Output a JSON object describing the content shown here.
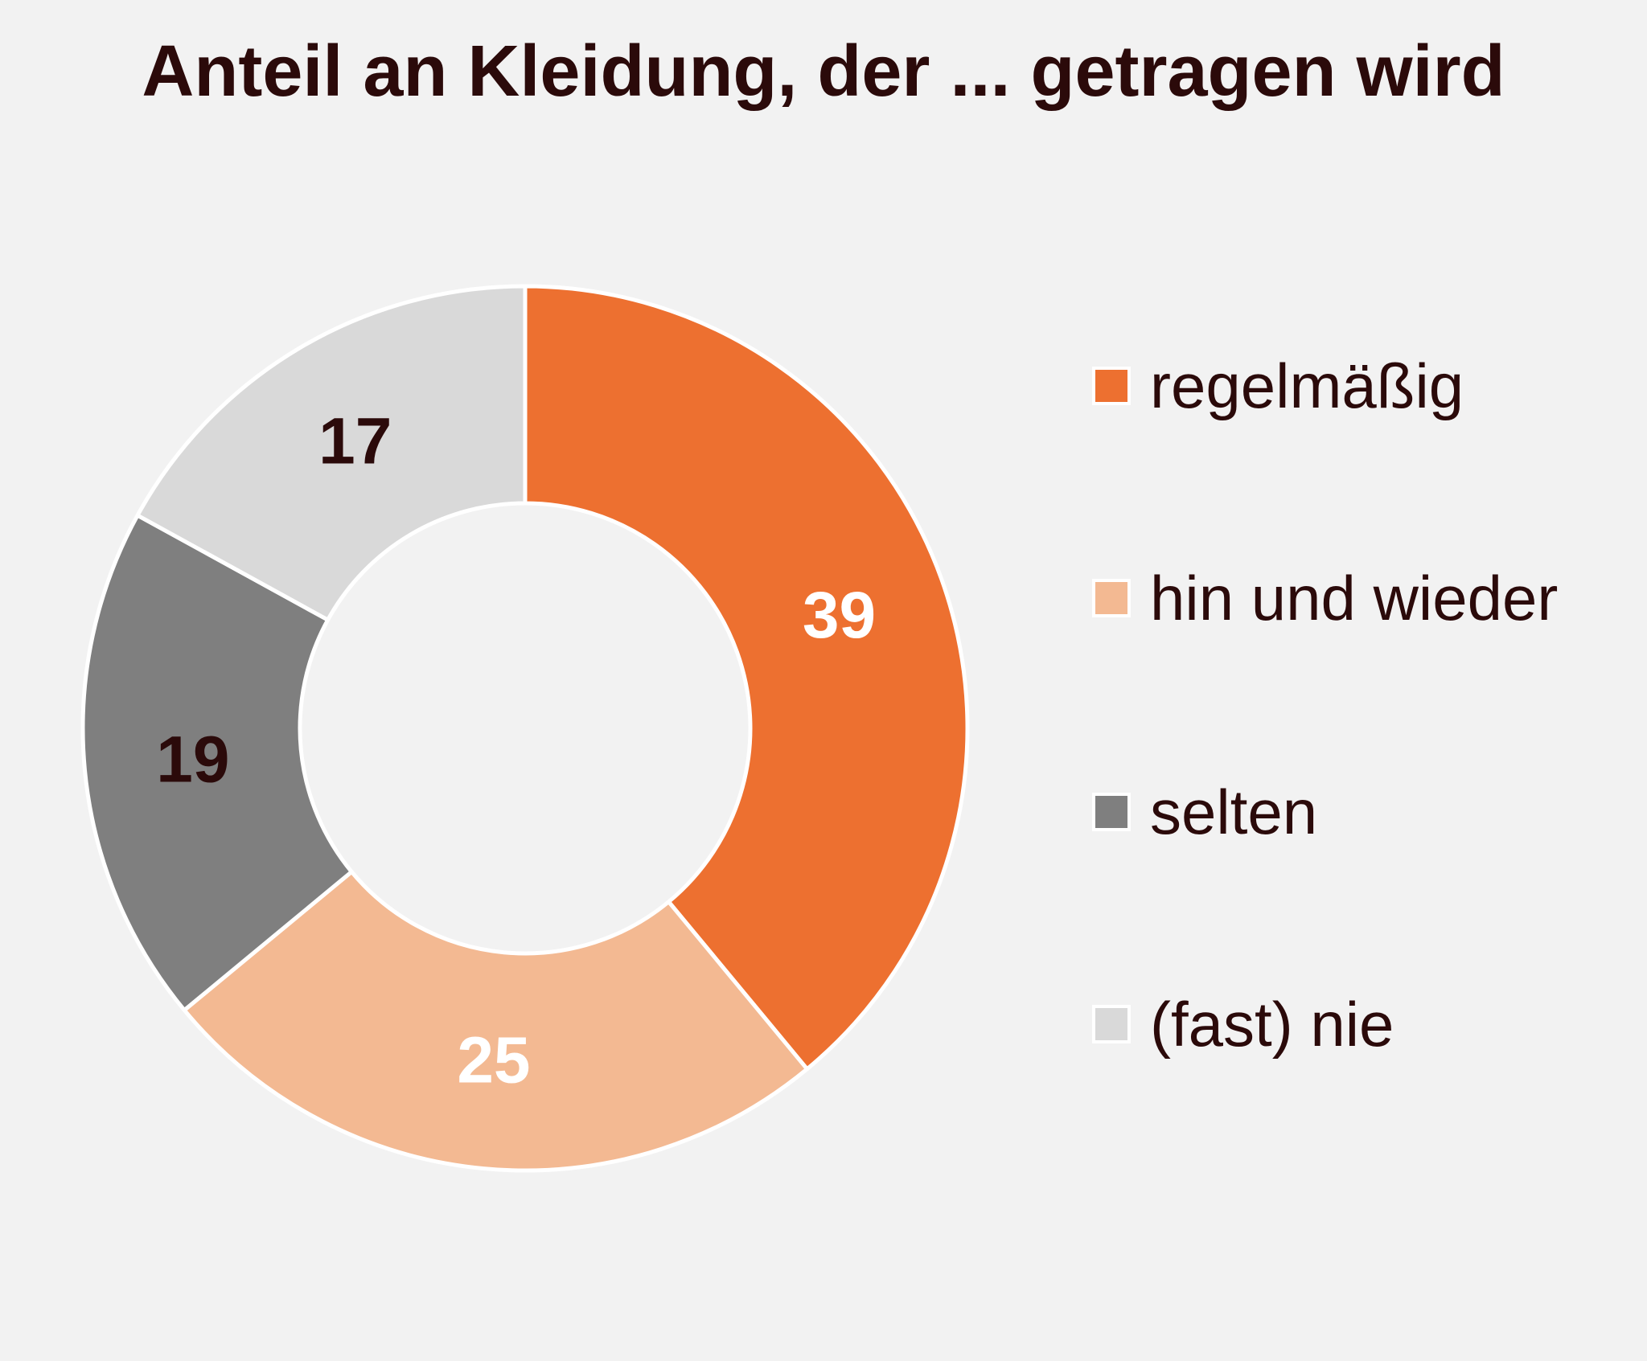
{
  "chart_data": {
    "type": "pie",
    "subtype": "donut",
    "title": "Anteil an Kleidung, der ... getragen wird",
    "categories": [
      "regelmäßig",
      "hin und wieder",
      "selten",
      "(fast) nie"
    ],
    "values": [
      39,
      25,
      19,
      17
    ],
    "labels": [
      "39",
      "25",
      "19",
      "17"
    ],
    "colors": [
      "#ed7030",
      "#f3b992",
      "#7f7f7f",
      "#d9d9d9"
    ],
    "label_colors": [
      "#ffffff",
      "#ffffff",
      "#2b0a0a",
      "#2b0a0a"
    ],
    "legend": {
      "position": "right",
      "entries": [
        "regelmäßig",
        "hin und wieder",
        "selten",
        "(fast) nie"
      ]
    }
  }
}
